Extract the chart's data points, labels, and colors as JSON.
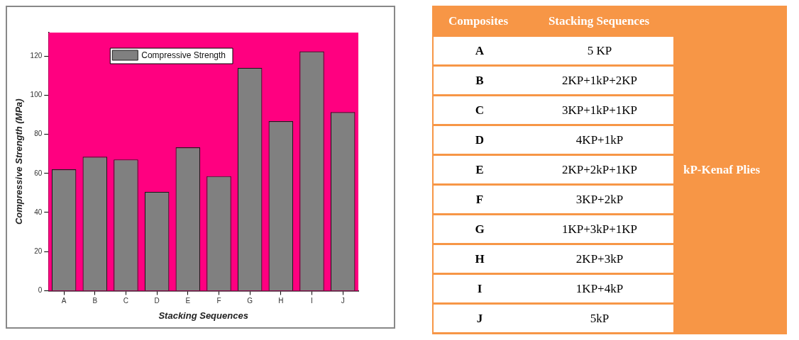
{
  "chart_data": [
    {
      "type": "bar",
      "xlabel": "Stacking Sequences",
      "ylabel": "Compressive Strength (MPa)",
      "categories": [
        "A",
        "B",
        "C",
        "D",
        "E",
        "F",
        "G",
        "H",
        "I",
        "J"
      ],
      "series": [
        {
          "name": "Compressive Strength",
          "color": "#808080",
          "values": [
            62.1,
            68.5,
            67.1,
            50.6,
            73.3,
            58.6,
            114,
            86.7,
            122.4,
            91.3
          ]
        }
      ],
      "ylim": [
        0,
        132
      ],
      "yticks": [
        0,
        20,
        40,
        60,
        80,
        100,
        120
      ],
      "legend": "top"
    },
    {
      "type": "other",
      "categories": [
        "Composites",
        "Stacking Sequences"
      ],
      "y_categories": [
        "A",
        "B",
        "C",
        "D",
        "E",
        "F",
        "G",
        "H",
        "I",
        "J"
      ],
      "cell_labels": [
        [
          "5 KP"
        ],
        [
          "2KP+1kP+2KP"
        ],
        [
          "3KP+1kP+1KP"
        ],
        [
          "4KP+1kP"
        ],
        [
          "2KP+2kP+1KP"
        ],
        [
          "3KP+2kP"
        ],
        [
          "1KP+3kP+1KP"
        ],
        [
          "2KP+3kP"
        ],
        [
          "1KP+4kP"
        ],
        [
          "5kP"
        ]
      ],
      "annotations": [
        "kP-Kenaf Plies"
      ]
    }
  ]
}
